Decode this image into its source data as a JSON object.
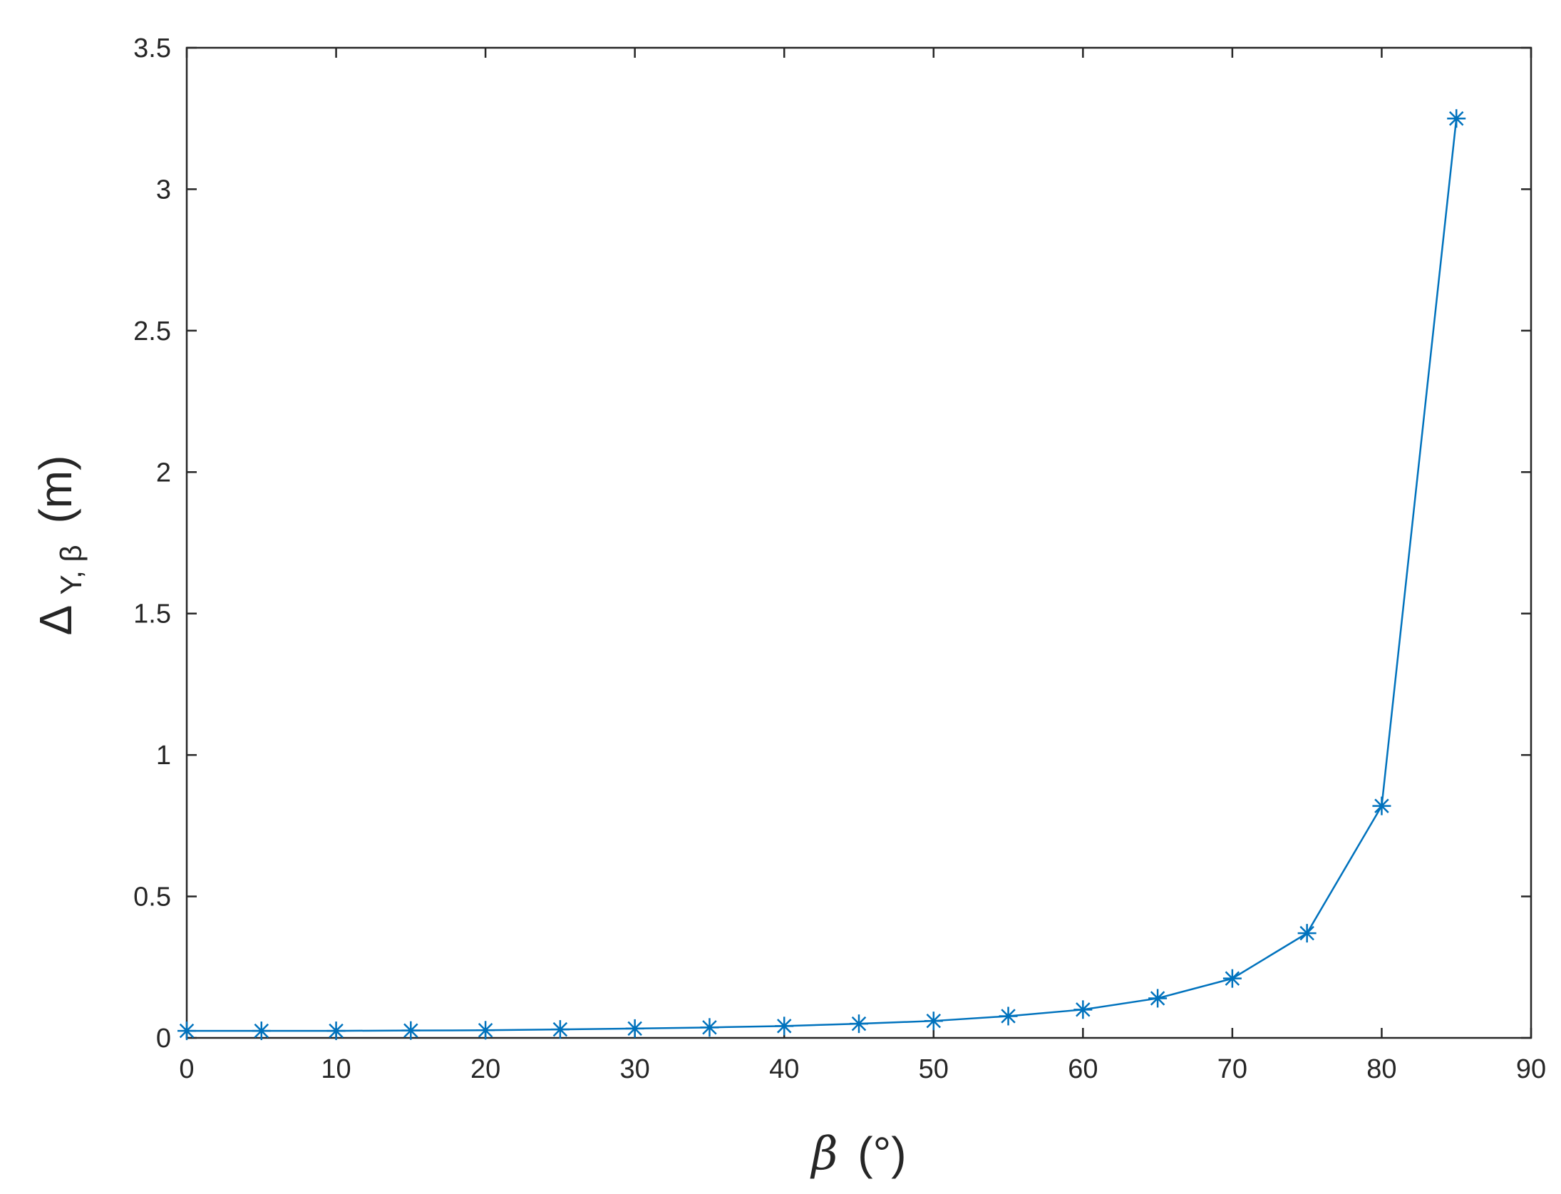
{
  "chart_data": {
    "type": "line",
    "title": "",
    "xlabel": {
      "main": "β",
      "unit": "(°)"
    },
    "ylabel": {
      "main": "Δ",
      "subscript": "Y, β",
      "unit": "(m)"
    },
    "xlim": [
      0,
      90
    ],
    "ylim": [
      0,
      3.5
    ],
    "x_ticks": [
      0,
      10,
      20,
      30,
      40,
      50,
      60,
      70,
      80,
      90
    ],
    "y_ticks": [
      0,
      0.5,
      1,
      1.5,
      2,
      2.5,
      3,
      3.5
    ],
    "grid": false,
    "series_color": "#0072BD",
    "marker": "asterisk",
    "series": [
      {
        "x": [
          0,
          5,
          10,
          15,
          20,
          25,
          30,
          35,
          40,
          45,
          50,
          55,
          60,
          65,
          70,
          75,
          80,
          85
        ],
        "y": [
          0.025,
          0.025,
          0.025,
          0.026,
          0.027,
          0.03,
          0.033,
          0.037,
          0.042,
          0.05,
          0.06,
          0.077,
          0.1,
          0.14,
          0.21,
          0.37,
          0.82,
          3.25
        ]
      }
    ]
  }
}
